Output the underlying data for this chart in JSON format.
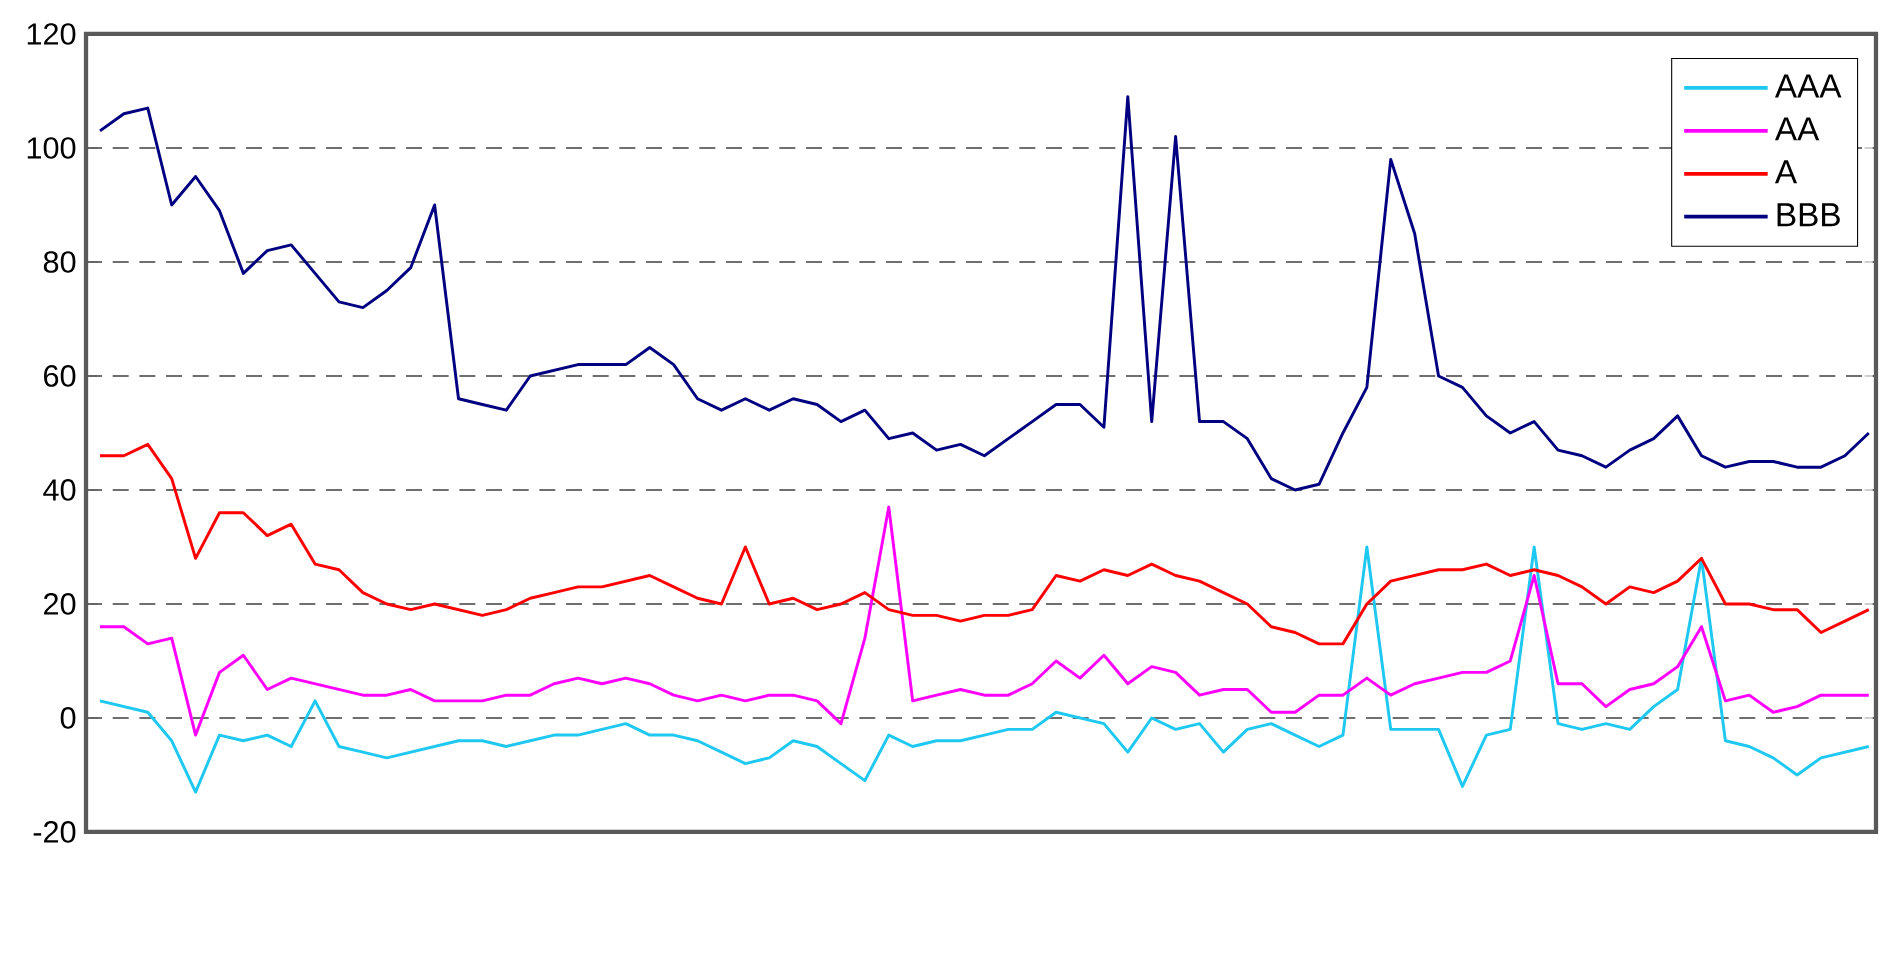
{
  "chart_data": {
    "type": "line",
    "categories": [
      null,
      null,
      null,
      null,
      null,
      null,
      null,
      null,
      null,
      null,
      null,
      null,
      null,
      null,
      null,
      null,
      null,
      null,
      null,
      null,
      null,
      null,
      null,
      null,
      null,
      null,
      null,
      null,
      null,
      null,
      null,
      null,
      null,
      null,
      null,
      null,
      null,
      null,
      null,
      null,
      null,
      null,
      null,
      null,
      null,
      null,
      null,
      null,
      null,
      null,
      null,
      null,
      null,
      null,
      null,
      null,
      null,
      null,
      null,
      null,
      null,
      null,
      null,
      null,
      null,
      null,
      null,
      null,
      null,
      null,
      null,
      null,
      null,
      null,
      null
    ],
    "series": [
      {
        "name": "AAA",
        "color": "#1ec8f0",
        "values": [
          3,
          2,
          1,
          -4,
          -13,
          -3,
          -4,
          -3,
          -5,
          3,
          -5,
          -6,
          -7,
          -6,
          -5,
          -4,
          -4,
          -5,
          -4,
          -3,
          -3,
          -2,
          -1,
          -3,
          -3,
          -4,
          -6,
          -8,
          -7,
          -4,
          -5,
          -8,
          -11,
          -3,
          -5,
          -4,
          -4,
          -3,
          -2,
          -2,
          1,
          0,
          -1,
          -6,
          0,
          -2,
          -1,
          -6,
          -2,
          -1,
          -3,
          -5,
          -3,
          30,
          -2,
          -2,
          -2,
          -12,
          -3,
          -2,
          30,
          -1,
          -2,
          -1,
          -2,
          2,
          5,
          28,
          -4,
          -5,
          -7,
          -10,
          -7,
          -6,
          -5
        ]
      },
      {
        "name": "AA",
        "color": "#ff00ff",
        "values": [
          16,
          16,
          13,
          14,
          -3,
          8,
          11,
          5,
          7,
          6,
          5,
          4,
          4,
          5,
          3,
          3,
          3,
          4,
          4,
          6,
          7,
          6,
          7,
          6,
          4,
          3,
          4,
          3,
          4,
          4,
          3,
          -1,
          14,
          37,
          3,
          4,
          5,
          4,
          4,
          6,
          10,
          7,
          11,
          6,
          9,
          8,
          4,
          5,
          5,
          1,
          1,
          4,
          4,
          7,
          4,
          6,
          7,
          8,
          8,
          10,
          25,
          6,
          6,
          2,
          5,
          6,
          9,
          16,
          3,
          4,
          1,
          2,
          4,
          4,
          4
        ]
      },
      {
        "name": "A",
        "color": "#ff0000",
        "values": [
          46,
          46,
          48,
          42,
          28,
          36,
          36,
          32,
          34,
          27,
          26,
          22,
          20,
          19,
          20,
          19,
          18,
          19,
          21,
          22,
          23,
          23,
          24,
          25,
          23,
          21,
          20,
          30,
          20,
          21,
          19,
          20,
          22,
          19,
          18,
          18,
          17,
          18,
          18,
          19,
          25,
          24,
          26,
          25,
          27,
          25,
          24,
          22,
          20,
          16,
          15,
          13,
          13,
          20,
          24,
          25,
          26,
          26,
          27,
          25,
          26,
          25,
          23,
          20,
          23,
          22,
          24,
          28,
          20,
          20,
          19,
          19,
          15,
          17,
          19
        ]
      },
      {
        "name": "BBB",
        "color": "#000080",
        "values": [
          103,
          106,
          107,
          90,
          95,
          89,
          78,
          82,
          83,
          78,
          73,
          72,
          75,
          79,
          90,
          56,
          55,
          54,
          60,
          61,
          62,
          62,
          62,
          65,
          62,
          56,
          54,
          56,
          54,
          56,
          55,
          52,
          54,
          49,
          50,
          47,
          48,
          46,
          49,
          52,
          55,
          55,
          51,
          109,
          52,
          102,
          52,
          52,
          49,
          42,
          40,
          41,
          50,
          58,
          98,
          85,
          60,
          58,
          53,
          50,
          52,
          47,
          46,
          44,
          47,
          49,
          53,
          46,
          44,
          45,
          45,
          44,
          44,
          46,
          50
        ]
      }
    ],
    "ylim": [
      -20,
      120
    ],
    "yticks": [
      -20,
      0,
      20,
      40,
      60,
      80,
      100,
      120
    ],
    "grid": "y",
    "legend": "top right",
    "tick_labels": "y"
  }
}
